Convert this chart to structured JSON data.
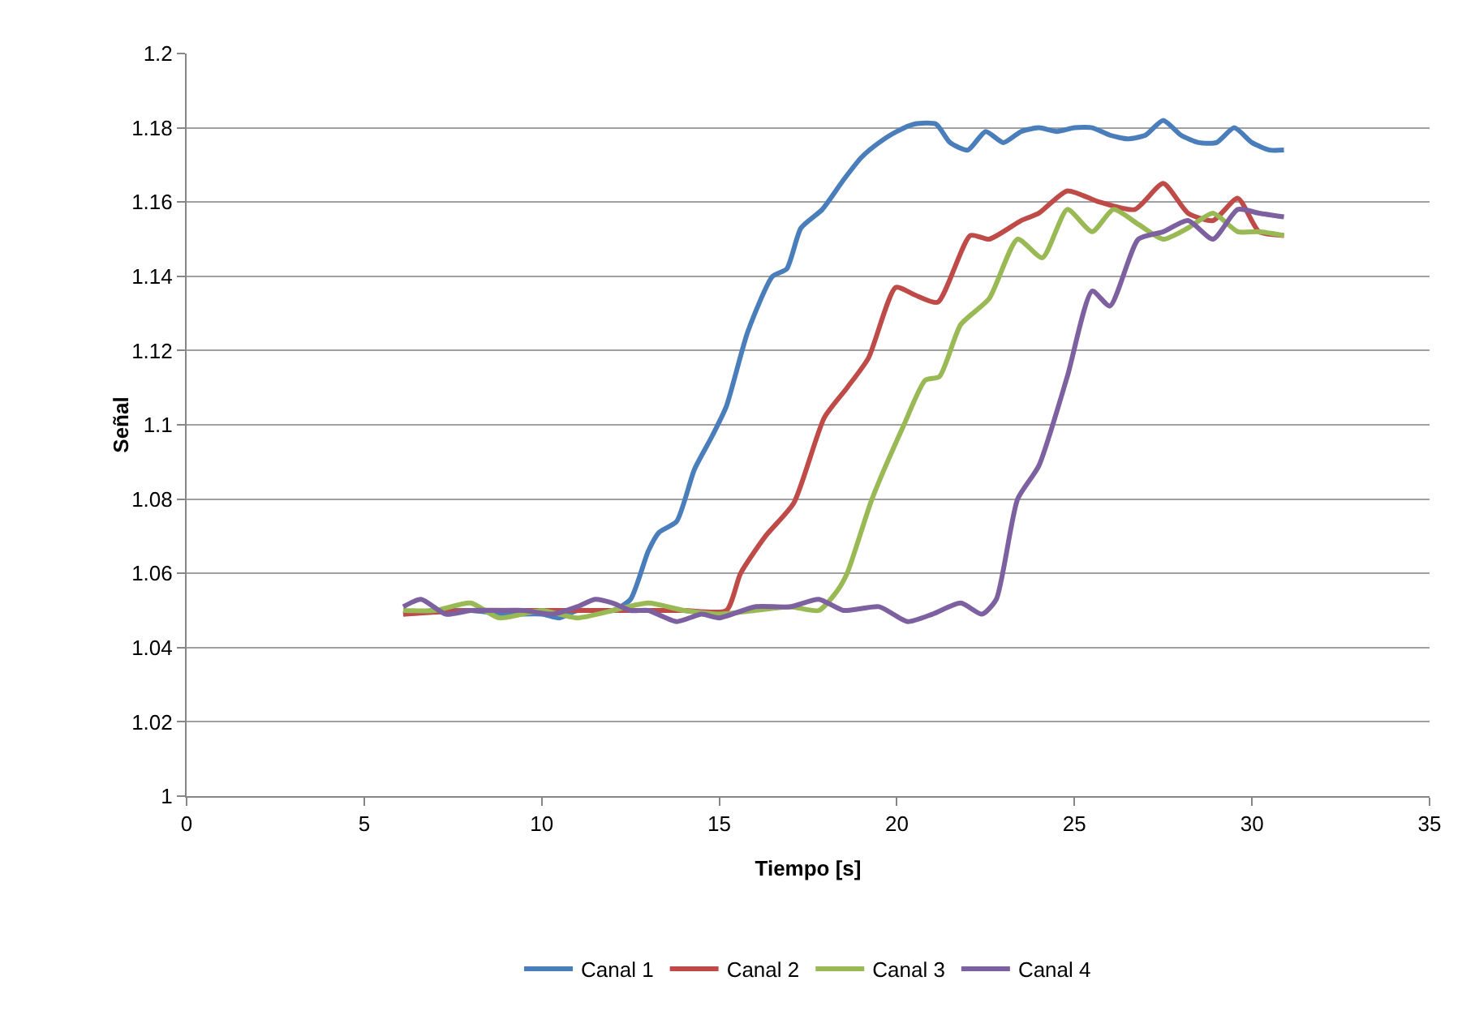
{
  "chart_data": {
    "type": "line",
    "xlabel": "Tiempo [s]",
    "ylabel": "Señal",
    "xlim": [
      0,
      35
    ],
    "xticks": [
      0,
      5,
      10,
      15,
      20,
      25,
      30,
      35
    ],
    "ylim": [
      1,
      1.2
    ],
    "yticks": [
      1,
      1.02,
      1.04,
      1.06,
      1.08,
      1.1,
      1.12,
      1.14,
      1.16,
      1.18,
      1.2
    ],
    "grid": "y",
    "legend": "bottom",
    "marker": "none",
    "line_style": "solid",
    "series": [
      {
        "name": "Canal 1",
        "color": "#4a7ebb",
        "x": [
          6.1,
          7,
          8,
          9,
          10,
          10.5,
          11,
          12,
          12.5,
          13,
          13.3,
          13.8,
          14.3,
          14.8,
          15.2,
          15.8,
          16.5,
          16.9,
          17.3,
          17.9,
          18.5,
          19,
          19.5,
          20,
          20.5,
          21.1,
          21.5,
          22,
          22.5,
          23,
          23.5,
          24,
          24.5,
          25,
          25.5,
          26,
          26.5,
          27,
          27.5,
          28,
          28.5,
          29,
          29.5,
          30,
          30.5,
          30.9
        ],
        "values": [
          1.049,
          1.05,
          1.05,
          1.049,
          1.049,
          1.048,
          1.05,
          1.05,
          1.053,
          1.066,
          1.071,
          1.074,
          1.088,
          1.097,
          1.105,
          1.125,
          1.14,
          1.142,
          1.153,
          1.158,
          1.166,
          1.172,
          1.176,
          1.179,
          1.181,
          1.181,
          1.176,
          1.174,
          1.179,
          1.176,
          1.179,
          1.18,
          1.179,
          1.18,
          1.18,
          1.178,
          1.177,
          1.178,
          1.182,
          1.178,
          1.176,
          1.176,
          1.18,
          1.176,
          1.174,
          1.174
        ]
      },
      {
        "name": "Canal 2",
        "color": "#be4b48",
        "x": [
          6.1,
          8,
          10,
          12,
          14,
          15.2,
          15.6,
          16.3,
          17.1,
          17.96,
          18.6,
          19.2,
          19.97,
          20.5,
          21.15,
          22.07,
          22.6,
          23.5,
          24,
          24.8,
          25.7,
          26.7,
          27.5,
          28.2,
          28.9,
          29.6,
          30.2,
          30.9
        ],
        "values": [
          1.049,
          1.05,
          1.05,
          1.05,
          1.05,
          1.05,
          1.06,
          1.07,
          1.079,
          1.102,
          1.11,
          1.118,
          1.137,
          1.135,
          1.133,
          1.151,
          1.15,
          1.155,
          1.157,
          1.163,
          1.16,
          1.158,
          1.165,
          1.157,
          1.155,
          1.161,
          1.152,
          1.151
        ]
      },
      {
        "name": "Canal 3",
        "color": "#98b954",
        "x": [
          6.1,
          7,
          8,
          8.8,
          10,
          11,
          12,
          13,
          14,
          15,
          16,
          17,
          17.8,
          18.3,
          18.6,
          19.3,
          20.2,
          20.8,
          21.2,
          21.8,
          22.6,
          23.4,
          24.1,
          24.8,
          25.5,
          26.1,
          26.8,
          27.5,
          28.2,
          28.9,
          29.6,
          30.2,
          30.9
        ],
        "values": [
          1.05,
          1.05,
          1.052,
          1.048,
          1.05,
          1.048,
          1.05,
          1.052,
          1.05,
          1.049,
          1.05,
          1.051,
          1.05,
          1.055,
          1.06,
          1.08,
          1.1,
          1.112,
          1.113,
          1.127,
          1.134,
          1.15,
          1.145,
          1.158,
          1.152,
          1.158,
          1.154,
          1.15,
          1.153,
          1.157,
          1.152,
          1.152,
          1.151
        ]
      },
      {
        "name": "Canal 4",
        "color": "#7d60a0",
        "x": [
          6.1,
          6.6,
          7.3,
          8,
          8.8,
          9.5,
          10.3,
          11,
          11.5,
          12,
          12.5,
          13,
          13.8,
          14.5,
          15,
          16,
          17,
          17.8,
          18.5,
          19.5,
          20.3,
          21,
          21.8,
          22.4,
          22.8,
          23.4,
          24,
          24.8,
          25.5,
          26,
          26.8,
          27.5,
          28.2,
          28.9,
          29.6,
          30.2,
          30.9
        ],
        "values": [
          1.051,
          1.053,
          1.049,
          1.05,
          1.05,
          1.05,
          1.049,
          1.051,
          1.053,
          1.052,
          1.05,
          1.05,
          1.047,
          1.049,
          1.048,
          1.051,
          1.051,
          1.053,
          1.05,
          1.051,
          1.047,
          1.049,
          1.052,
          1.049,
          1.053,
          1.08,
          1.089,
          1.113,
          1.136,
          1.132,
          1.15,
          1.152,
          1.155,
          1.15,
          1.158,
          1.157,
          1.156
        ]
      }
    ]
  }
}
